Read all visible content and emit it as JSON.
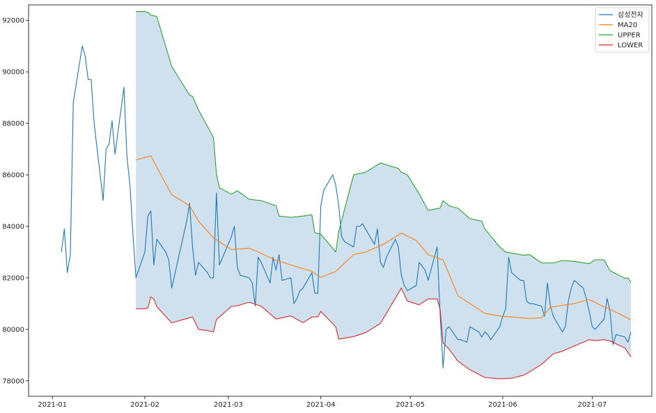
{
  "chart_data": {
    "type": "line",
    "title": "",
    "xlabel": "",
    "ylabel": "",
    "xlim": [
      "2020-12-24",
      "2021-07-21"
    ],
    "ylim": [
      77400,
      92600
    ],
    "grid": false,
    "legend_position": "top-right",
    "x_ticks": [
      {
        "date": "2021-01-01",
        "label": "2021-01"
      },
      {
        "date": "2021-02-01",
        "label": "2021-02"
      },
      {
        "date": "2021-03-01",
        "label": "2021-03"
      },
      {
        "date": "2021-04-01",
        "label": "2021-04"
      },
      {
        "date": "2021-05-01",
        "label": "2021-05"
      },
      {
        "date": "2021-06-01",
        "label": "2021-06"
      },
      {
        "date": "2021-07-01",
        "label": "2021-07"
      }
    ],
    "y_ticks": [
      {
        "value": 78000,
        "label": "78000"
      },
      {
        "value": 80000,
        "label": "80000"
      },
      {
        "value": 82000,
        "label": "82000"
      },
      {
        "value": 84000,
        "label": "84000"
      },
      {
        "value": 86000,
        "label": "86000"
      },
      {
        "value": 88000,
        "label": "88000"
      },
      {
        "value": 90000,
        "label": "90000"
      },
      {
        "value": 92000,
        "label": "92000"
      }
    ],
    "band": {
      "upper": "UPPER",
      "lower": "LOWER",
      "color": "#cfe1ee"
    },
    "series": [
      {
        "name": "삼성전자",
        "color": "#1f77b4",
        "x": [
          "2021-01-04",
          "2021-01-05",
          "2021-01-06",
          "2021-01-07",
          "2021-01-08",
          "2021-01-11",
          "2021-01-12",
          "2021-01-13",
          "2021-01-14",
          "2021-01-15",
          "2021-01-18",
          "2021-01-19",
          "2021-01-20",
          "2021-01-21",
          "2021-01-22",
          "2021-01-25",
          "2021-01-26",
          "2021-01-27",
          "2021-01-28",
          "2021-01-29",
          "2021-02-01",
          "2021-02-02",
          "2021-02-03",
          "2021-02-04",
          "2021-02-05",
          "2021-02-08",
          "2021-02-09",
          "2021-02-10",
          "2021-02-15",
          "2021-02-16",
          "2021-02-17",
          "2021-02-18",
          "2021-02-19",
          "2021-02-22",
          "2021-02-23",
          "2021-02-24",
          "2021-02-25",
          "2021-02-26",
          "2021-03-02",
          "2021-03-03",
          "2021-03-04",
          "2021-03-05",
          "2021-03-08",
          "2021-03-09",
          "2021-03-10",
          "2021-03-11",
          "2021-03-12",
          "2021-03-15",
          "2021-03-16",
          "2021-03-17",
          "2021-03-18",
          "2021-03-19",
          "2021-03-22",
          "2021-03-23",
          "2021-03-24",
          "2021-03-25",
          "2021-03-26",
          "2021-03-29",
          "2021-03-30",
          "2021-03-31",
          "2021-04-01",
          "2021-04-02",
          "2021-04-05",
          "2021-04-06",
          "2021-04-07",
          "2021-04-08",
          "2021-04-09",
          "2021-04-12",
          "2021-04-13",
          "2021-04-14",
          "2021-04-15",
          "2021-04-16",
          "2021-04-19",
          "2021-04-20",
          "2021-04-21",
          "2021-04-22",
          "2021-04-23",
          "2021-04-26",
          "2021-04-27",
          "2021-04-28",
          "2021-04-29",
          "2021-04-30",
          "2021-05-03",
          "2021-05-04",
          "2021-05-06",
          "2021-05-07",
          "2021-05-10",
          "2021-05-11",
          "2021-05-12",
          "2021-05-13",
          "2021-05-14",
          "2021-05-17",
          "2021-05-18",
          "2021-05-20",
          "2021-05-21",
          "2021-05-24",
          "2021-05-25",
          "2021-05-26",
          "2021-05-27",
          "2021-05-28",
          "2021-05-31",
          "2021-06-01",
          "2021-06-02",
          "2021-06-03",
          "2021-06-04",
          "2021-06-07",
          "2021-06-08",
          "2021-06-09",
          "2021-06-10",
          "2021-06-11",
          "2021-06-14",
          "2021-06-15",
          "2021-06-16",
          "2021-06-17",
          "2021-06-18",
          "2021-06-21",
          "2021-06-22",
          "2021-06-23",
          "2021-06-24",
          "2021-06-25",
          "2021-06-28",
          "2021-06-29",
          "2021-06-30",
          "2021-07-01",
          "2021-07-02",
          "2021-07-05",
          "2021-07-06",
          "2021-07-07",
          "2021-07-08",
          "2021-07-09",
          "2021-07-12",
          "2021-07-13",
          "2021-07-14"
        ],
        "values": [
          83000,
          83900,
          82200,
          82900,
          88800,
          91000,
          90600,
          89700,
          89700,
          88000,
          85000,
          87000,
          87200,
          88100,
          86800,
          89400,
          86700,
          85600,
          83700,
          82000,
          83000,
          84400,
          84600,
          82500,
          83500,
          83000,
          82700,
          81600,
          84200,
          84900,
          83200,
          82100,
          82600,
          82200,
          82000,
          82000,
          85300,
          82500,
          83600,
          84000,
          82400,
          82100,
          82000,
          81800,
          80900,
          82800,
          82600,
          81800,
          82800,
          82300,
          82900,
          81900,
          82000,
          81000,
          81200,
          81500,
          81600,
          82200,
          81400,
          81400,
          84800,
          85400,
          86000,
          85600,
          84800,
          83600,
          83400,
          83200,
          84000,
          84000,
          84100,
          83900,
          83300,
          83900,
          82600,
          82400,
          82800,
          83500,
          83200,
          82100,
          81700,
          81500,
          81700,
          82600,
          82300,
          81900,
          83200,
          80600,
          78500,
          80000,
          80100,
          79600,
          79600,
          79500,
          80100,
          79900,
          79700,
          79900,
          79800,
          79600,
          80100,
          80500,
          80800,
          82800,
          82200,
          81900,
          81900,
          81100,
          81000,
          81000,
          80900,
          80500,
          81800,
          80900,
          80500,
          79900,
          80100,
          81100,
          81600,
          81900,
          81600,
          81200,
          80700,
          80100,
          80000,
          80400,
          81200,
          80700,
          79400,
          79800,
          79700,
          79500,
          79900
        ]
      },
      {
        "name": "MA20",
        "color": "#ff7f0e",
        "x": [
          "2021-01-29",
          "2021-02-03",
          "2021-02-05",
          "2021-02-10",
          "2021-02-16",
          "2021-02-19",
          "2021-02-24",
          "2021-03-02",
          "2021-03-08",
          "2021-03-12",
          "2021-03-17",
          "2021-03-22",
          "2021-03-29",
          "2021-04-01",
          "2021-04-06",
          "2021-04-12",
          "2021-04-16",
          "2021-04-22",
          "2021-04-28",
          "2021-05-03",
          "2021-05-07",
          "2021-05-12",
          "2021-05-17",
          "2021-05-21",
          "2021-05-26",
          "2021-06-01",
          "2021-06-04",
          "2021-06-10",
          "2021-06-14",
          "2021-06-17",
          "2021-06-21",
          "2021-06-25",
          "2021-06-30",
          "2021-07-05",
          "2021-07-09",
          "2021-07-14"
        ],
        "values": [
          86580,
          86740,
          86300,
          85230,
          84800,
          84200,
          83550,
          83100,
          83150,
          82950,
          82680,
          82500,
          82250,
          82020,
          82250,
          82900,
          83000,
          83300,
          83740,
          83450,
          82900,
          82700,
          81300,
          81000,
          80620,
          80500,
          80480,
          80420,
          80450,
          80860,
          80930,
          81000,
          81160,
          80870,
          80670,
          80370
        ]
      },
      {
        "name": "UPPER",
        "color": "#2ca02c",
        "x": [
          "2021-01-29",
          "2021-02-01",
          "2021-02-02",
          "2021-02-03",
          "2021-02-05",
          "2021-02-10",
          "2021-02-16",
          "2021-02-17",
          "2021-02-19",
          "2021-02-24",
          "2021-02-25",
          "2021-02-26",
          "2021-03-02",
          "2021-03-04",
          "2021-03-08",
          "2021-03-12",
          "2021-03-17",
          "2021-03-18",
          "2021-03-22",
          "2021-03-26",
          "2021-03-29",
          "2021-03-30",
          "2021-04-01",
          "2021-04-06",
          "2021-04-07",
          "2021-04-12",
          "2021-04-16",
          "2021-04-21",
          "2021-04-27",
          "2021-04-28",
          "2021-04-30",
          "2021-05-04",
          "2021-05-07",
          "2021-05-11",
          "2021-05-12",
          "2021-05-14",
          "2021-05-17",
          "2021-05-21",
          "2021-05-25",
          "2021-05-26",
          "2021-05-31",
          "2021-06-02",
          "2021-06-07",
          "2021-06-08",
          "2021-06-10",
          "2021-06-14",
          "2021-06-18",
          "2021-06-21",
          "2021-06-25",
          "2021-06-30",
          "2021-07-02",
          "2021-07-05",
          "2021-07-07",
          "2021-07-12",
          "2021-07-13",
          "2021-07-14"
        ],
        "values": [
          92340,
          92340,
          92310,
          92200,
          92150,
          90210,
          89100,
          89050,
          88520,
          87450,
          86040,
          85500,
          85250,
          85380,
          85050,
          85000,
          84800,
          84400,
          84350,
          84400,
          84450,
          83750,
          83700,
          83000,
          83800,
          86000,
          86100,
          86460,
          86250,
          86100,
          86000,
          85260,
          84620,
          84710,
          85000,
          84800,
          84700,
          84300,
          84200,
          83900,
          83200,
          83000,
          82900,
          82880,
          82900,
          82580,
          82580,
          82670,
          82640,
          82550,
          82700,
          82700,
          82280,
          81980,
          82000,
          81820
        ]
      },
      {
        "name": "LOWER",
        "color": "#d62728",
        "x": [
          "2021-01-29",
          "2021-02-01",
          "2021-02-02",
          "2021-02-03",
          "2021-02-04",
          "2021-02-05",
          "2021-02-10",
          "2021-02-16",
          "2021-02-17",
          "2021-02-19",
          "2021-02-22",
          "2021-02-24",
          "2021-02-25",
          "2021-03-02",
          "2021-03-04",
          "2021-03-08",
          "2021-03-12",
          "2021-03-17",
          "2021-03-22",
          "2021-03-26",
          "2021-03-29",
          "2021-03-31",
          "2021-04-01",
          "2021-04-06",
          "2021-04-07",
          "2021-04-12",
          "2021-04-16",
          "2021-04-21",
          "2021-04-28",
          "2021-04-30",
          "2021-05-04",
          "2021-05-07",
          "2021-05-10",
          "2021-05-11",
          "2021-05-12",
          "2021-05-14",
          "2021-05-17",
          "2021-05-21",
          "2021-05-26",
          "2021-05-31",
          "2021-06-04",
          "2021-06-08",
          "2021-06-10",
          "2021-06-14",
          "2021-06-18",
          "2021-06-21",
          "2021-06-25",
          "2021-06-30",
          "2021-07-02",
          "2021-07-05",
          "2021-07-07",
          "2021-07-12",
          "2021-07-14"
        ],
        "values": [
          80800,
          80800,
          80830,
          81260,
          81180,
          80880,
          80250,
          80450,
          80480,
          80000,
          79950,
          79900,
          80380,
          80890,
          80920,
          81050,
          80900,
          80400,
          80520,
          80260,
          80480,
          80480,
          80700,
          80100,
          79620,
          79720,
          79870,
          80230,
          81600,
          81100,
          80950,
          81180,
          81180,
          80780,
          79470,
          79230,
          78760,
          78430,
          78130,
          78080,
          78100,
          78220,
          78350,
          78640,
          79050,
          79150,
          79350,
          79600,
          79560,
          79600,
          79550,
          79270,
          78930
        ]
      }
    ]
  }
}
